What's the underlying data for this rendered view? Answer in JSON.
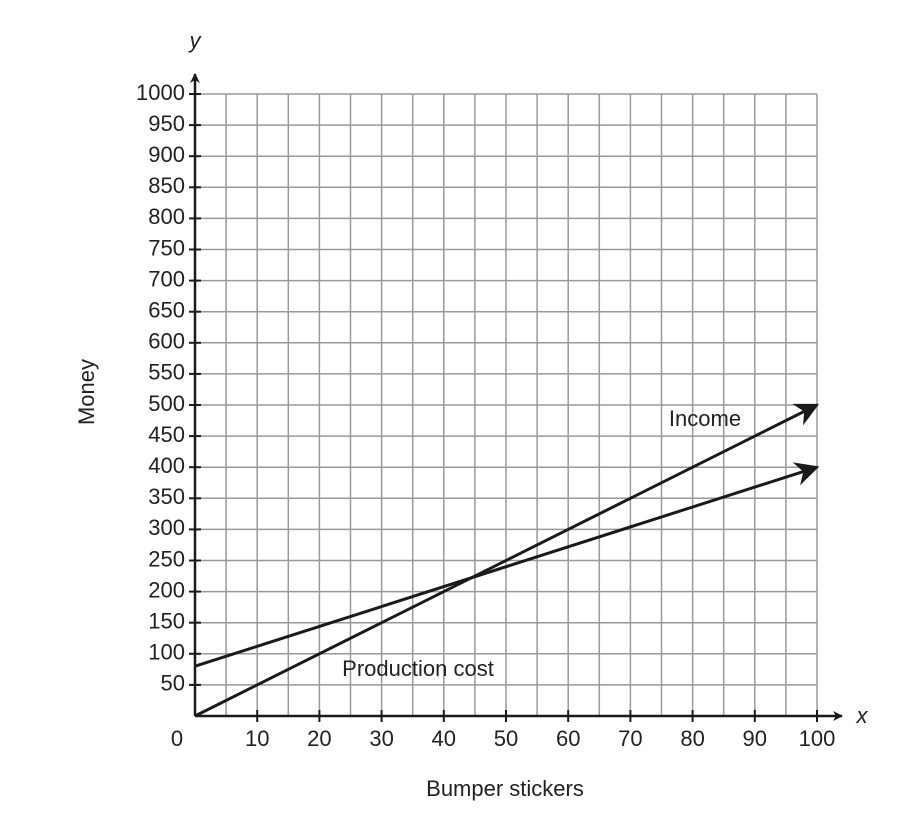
{
  "chart_data": {
    "type": "line",
    "x_label": "Bumper stickers",
    "y_label": "Money",
    "x_axis_name": "x",
    "y_axis_name": "y",
    "x": [
      0,
      100
    ],
    "series": [
      {
        "name": "Income",
        "color": "#1a1a1a",
        "values": [
          0,
          500
        ]
      },
      {
        "name": "Production cost",
        "color": "#1a1a1a",
        "values": [
          80,
          400
        ]
      }
    ],
    "xlim": [
      0,
      100
    ],
    "ylim": [
      0,
      1000
    ],
    "xticks": [
      0,
      10,
      20,
      30,
      40,
      50,
      60,
      70,
      80,
      90,
      100
    ],
    "x_grid": [
      0,
      5,
      10,
      15,
      20,
      25,
      30,
      35,
      40,
      45,
      50,
      55,
      60,
      65,
      70,
      75,
      80,
      85,
      90,
      95,
      100
    ],
    "yticks": [
      50,
      100,
      150,
      200,
      250,
      300,
      350,
      400,
      450,
      500,
      550,
      600,
      650,
      700,
      750,
      800,
      850,
      900,
      950,
      1000
    ],
    "grid": true
  }
}
